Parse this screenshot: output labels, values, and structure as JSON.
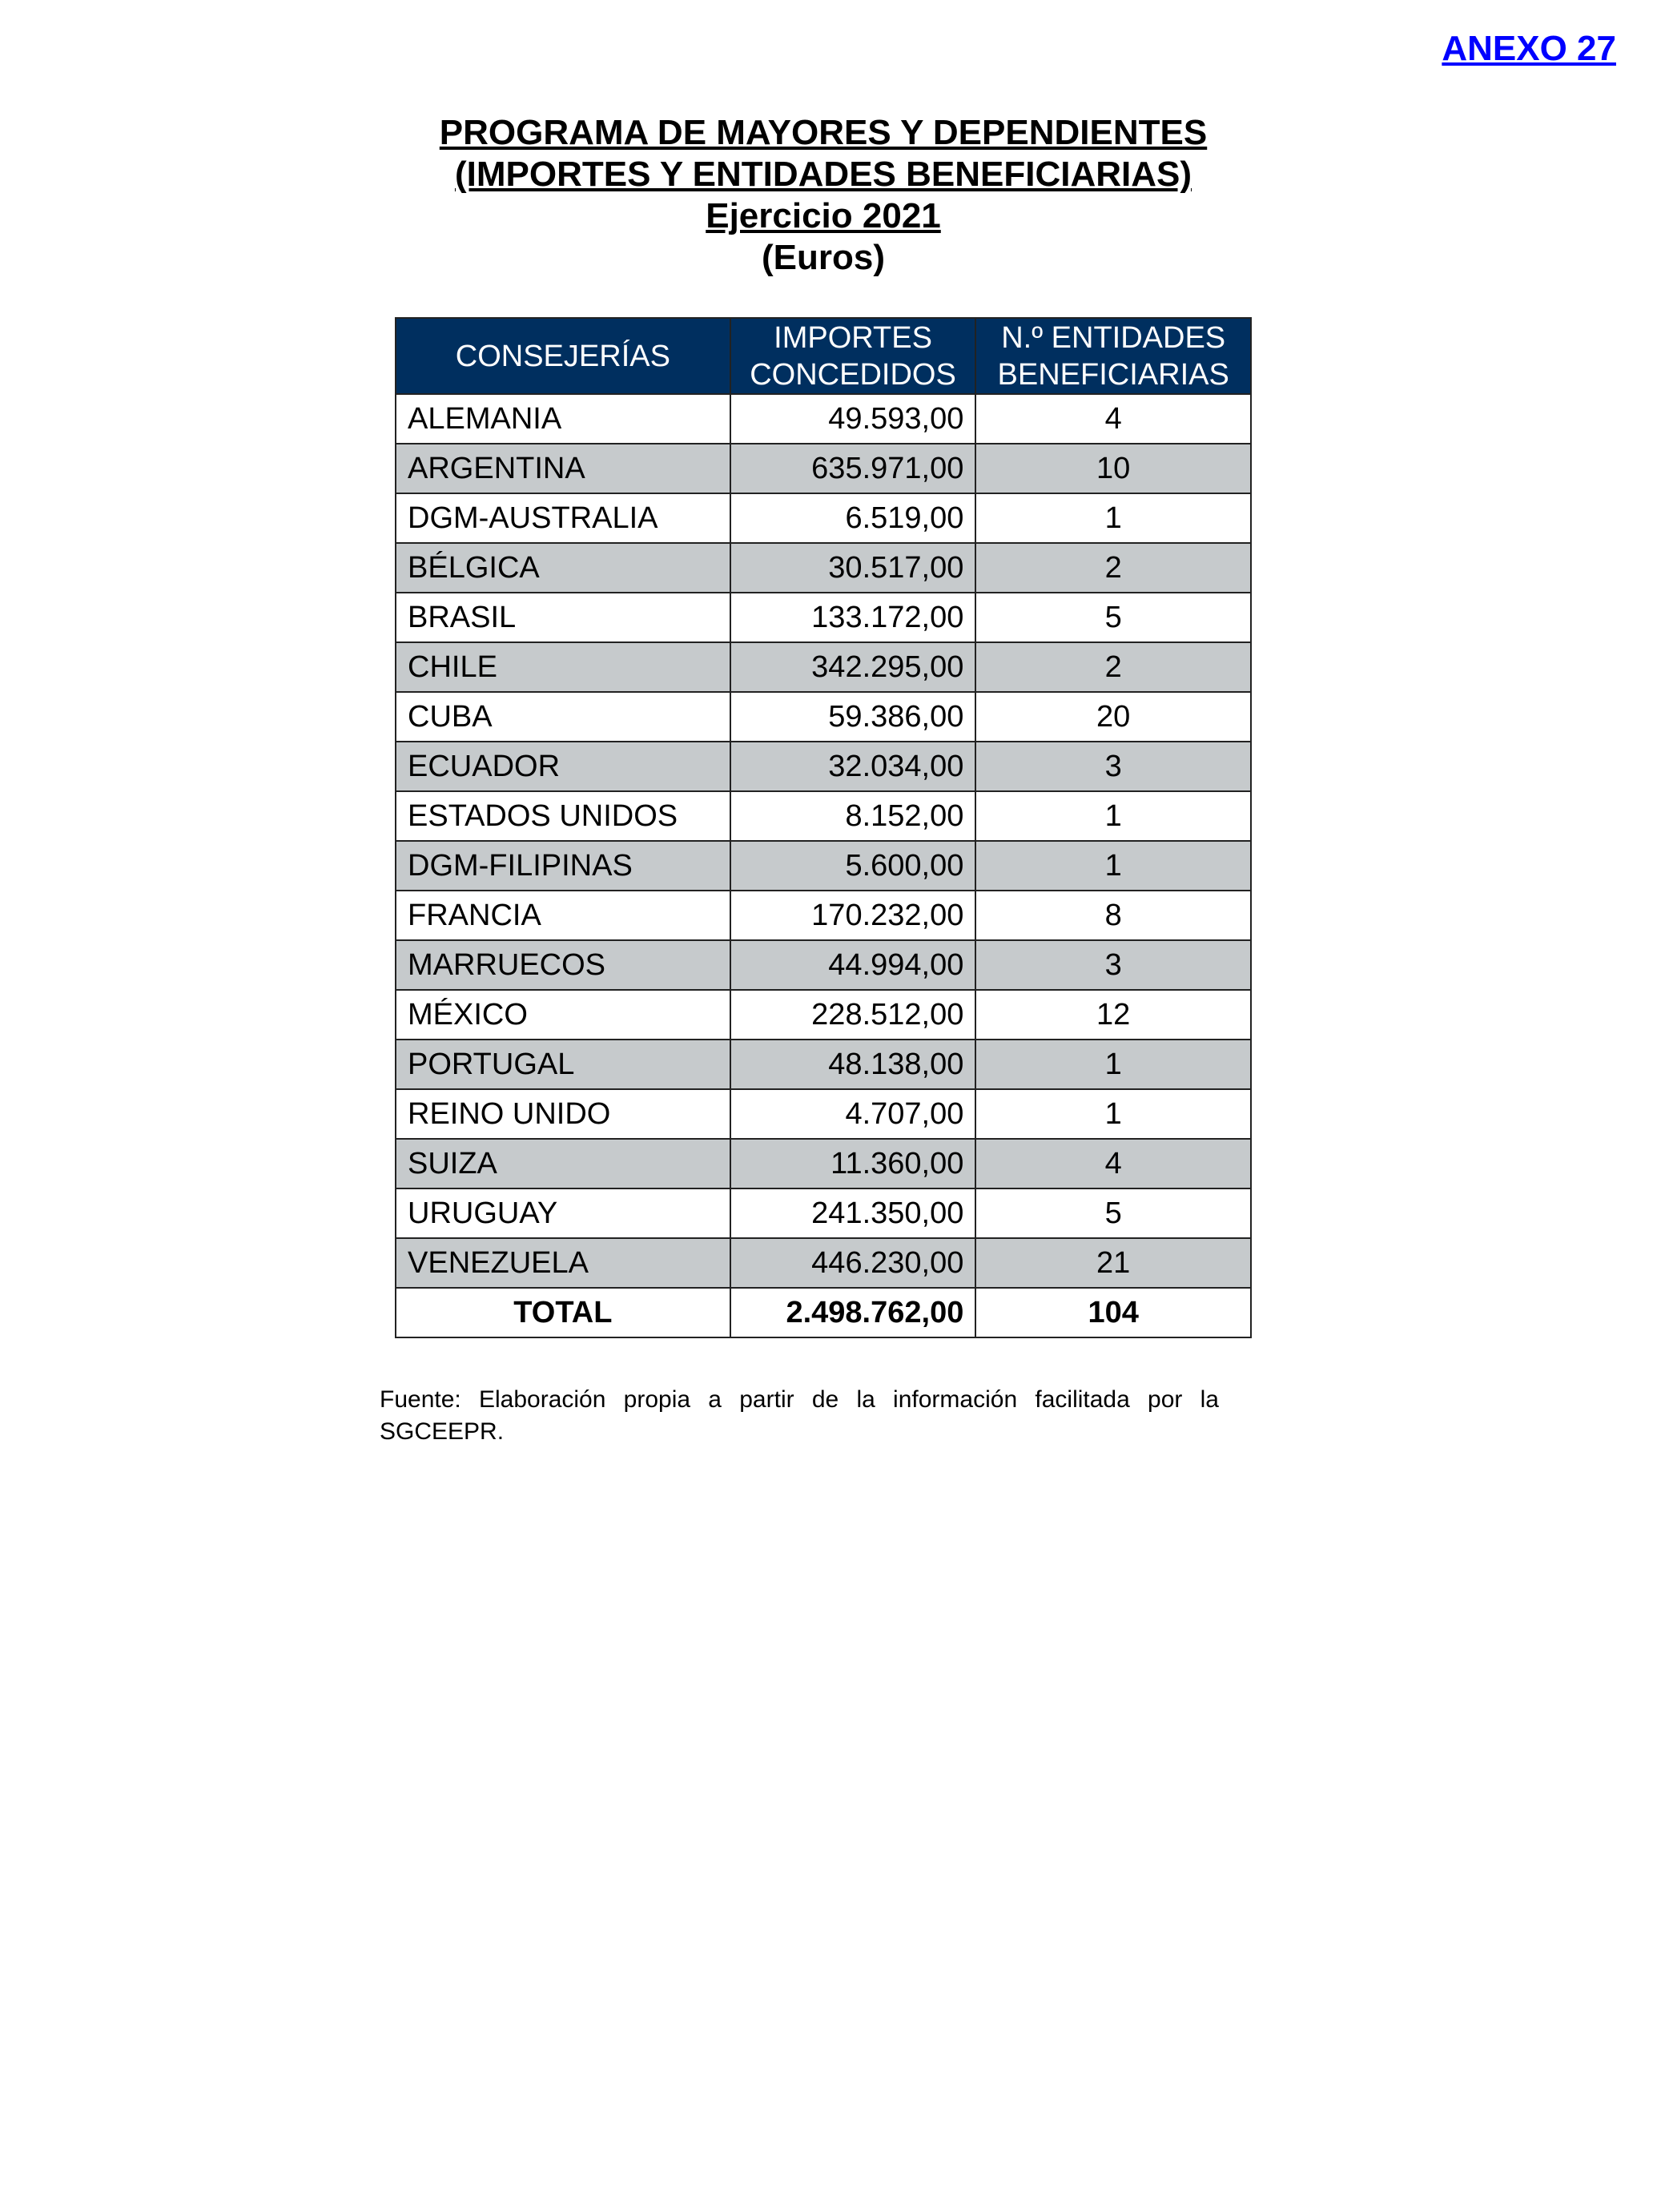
{
  "annex_label": "ANEXO 27",
  "title": {
    "line1": "PROGRAMA DE MAYORES Y DEPENDIENTES",
    "line2": "(IMPORTES Y ENTIDADES BENEFICIARIAS)",
    "line3": "Ejercicio 2021",
    "line4": "(Euros)"
  },
  "table": {
    "headers": [
      "CONSEJERÍAS",
      "IMPORTES CONCEDIDOS",
      "N.º ENTIDADES BENEFICIARIAS"
    ],
    "header_color": "#002f5f",
    "alt_row_color": "#c6cacc",
    "rows": [
      [
        "ALEMANIA",
        "49.593,00",
        "4"
      ],
      [
        "ARGENTINA",
        "635.971,00",
        "10"
      ],
      [
        "DGM-AUSTRALIA",
        "6.519,00",
        "1"
      ],
      [
        "BÉLGICA",
        "30.517,00",
        "2"
      ],
      [
        "BRASIL",
        "133.172,00",
        "5"
      ],
      [
        "CHILE",
        "342.295,00",
        "2"
      ],
      [
        "CUBA",
        "59.386,00",
        "20"
      ],
      [
        "ECUADOR",
        "32.034,00",
        "3"
      ],
      [
        "ESTADOS UNIDOS",
        "8.152,00",
        "1"
      ],
      [
        "DGM-FILIPINAS",
        "5.600,00",
        "1"
      ],
      [
        "FRANCIA",
        "170.232,00",
        "8"
      ],
      [
        "MARRUECOS",
        "44.994,00",
        "3"
      ],
      [
        "MÉXICO",
        "228.512,00",
        "12"
      ],
      [
        "PORTUGAL",
        "48.138,00",
        "1"
      ],
      [
        "REINO UNIDO",
        "4.707,00",
        "1"
      ],
      [
        "SUIZA",
        "11.360,00",
        "4"
      ],
      [
        "URUGUAY",
        "241.350,00",
        "5"
      ],
      [
        "VENEZUELA",
        "446.230,00",
        "21"
      ]
    ],
    "total": [
      "TOTAL",
      "2.498.762,00",
      "104"
    ]
  },
  "footnote": "Fuente: Elaboración propia a partir de la información facilitada por la SGCEEPR."
}
